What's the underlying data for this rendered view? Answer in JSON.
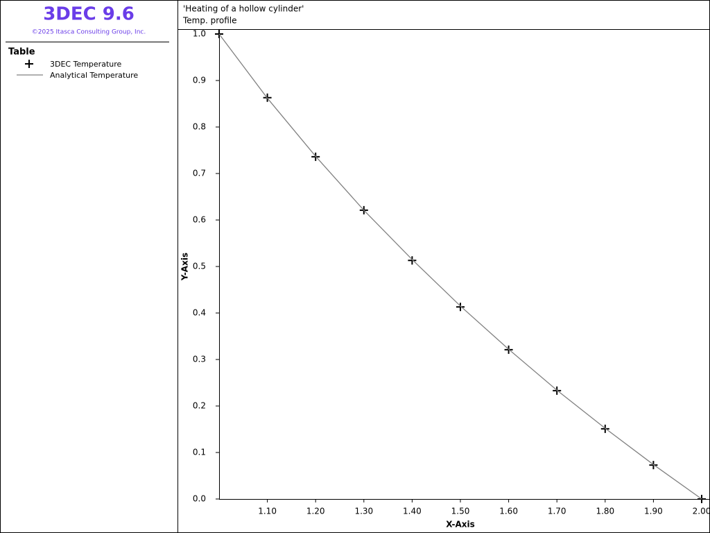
{
  "app": {
    "name": "3DEC 9.6",
    "copyright": "©2025 Itasca Consulting Group, Inc."
  },
  "chart_data": {
    "type": "line",
    "title": "'Heating of a hollow cylinder'",
    "subtitle": "Temp. profile",
    "legend_title": "Table",
    "x_label": "X-Axis",
    "y_label": "Y-Axis",
    "x": [
      1.0,
      1.1,
      1.2,
      1.3,
      1.4,
      1.5,
      1.6,
      1.7,
      1.8,
      1.9,
      2.0
    ],
    "series": [
      {
        "name": "3DEC Temperature",
        "color": "#000000",
        "style": "markers",
        "values": [
          1.0,
          0.863,
          0.736,
          0.621,
          0.513,
          0.413,
          0.321,
          0.233,
          0.151,
          0.073,
          0.0
        ]
      },
      {
        "name": "Analytical Temperature",
        "color": "#808080",
        "style": "line",
        "values": [
          1.0,
          0.862,
          0.737,
          0.621,
          0.515,
          0.415,
          0.322,
          0.234,
          0.152,
          0.074,
          0.0
        ]
      }
    ],
    "xlim": [
      1.0,
      2.0
    ],
    "xticks": [
      {
        "value": 1.1,
        "label": "1.10"
      },
      {
        "value": 1.2,
        "label": "1.20"
      },
      {
        "value": 1.3,
        "label": "1.30"
      },
      {
        "value": 1.4,
        "label": "1.40"
      },
      {
        "value": 1.5,
        "label": "1.50"
      },
      {
        "value": 1.6,
        "label": "1.60"
      },
      {
        "value": 1.7,
        "label": "1.70"
      },
      {
        "value": 1.8,
        "label": "1.80"
      },
      {
        "value": 1.9,
        "label": "1.90"
      },
      {
        "value": 2.0,
        "label": "2.00"
      }
    ],
    "ylim": [
      0,
      1
    ],
    "yticks": [
      {
        "value": 0,
        "label": "0.0"
      },
      0.1,
      0.2,
      0.3,
      0.4,
      0.5,
      0.6,
      0.7,
      0.8,
      0.9,
      {
        "value": 1,
        "label": "1.0"
      }
    ],
    "grid": false
  }
}
